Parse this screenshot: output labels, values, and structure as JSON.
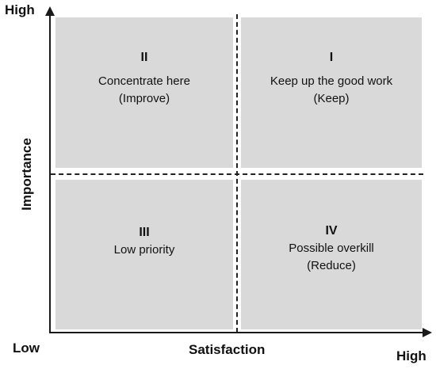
{
  "axes": {
    "y_high": "High",
    "x_high": "High",
    "origin": "Low",
    "x_label": "Satisfaction",
    "y_label": "Importance"
  },
  "quadrants": {
    "ii": {
      "roman": "II",
      "line1": "Concentrate here",
      "line2": "(Improve)"
    },
    "i": {
      "roman": "I",
      "line1": "Keep up the good work",
      "line2": "(Keep)"
    },
    "iii": {
      "roman": "III",
      "line1": "Low priority"
    },
    "iv": {
      "roman": "IV",
      "line1": "Possible overkill",
      "line2": "(Reduce)"
    }
  },
  "colors": {
    "quadrant_fill": "#d9d9d9",
    "axis": "#1a1a1a"
  }
}
